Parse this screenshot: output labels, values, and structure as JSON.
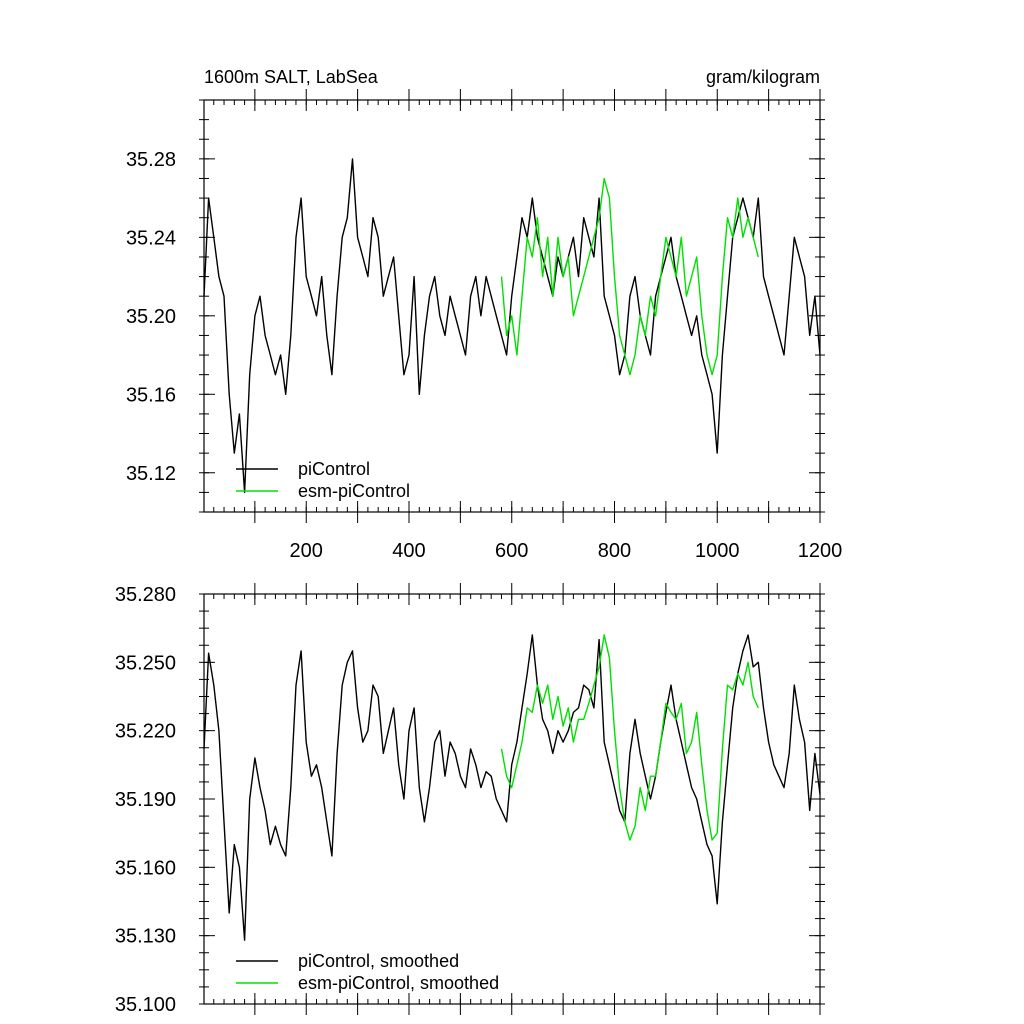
{
  "chart_data": [
    {
      "type": "line",
      "title_left": "1600m SALT, LabSea",
      "title_right": "gram/kilogram",
      "xlim": [
        1,
        1200
      ],
      "ylim": [
        35.1,
        35.31
      ],
      "xticks": [
        200,
        400,
        600,
        800,
        1000,
        1200
      ],
      "xtick_labels": [
        "200",
        "400",
        "600",
        "800",
        "1000",
        "1200"
      ],
      "yticks": [
        35.12,
        35.16,
        35.2,
        35.24,
        35.28
      ],
      "ytick_labels": [
        "35.12",
        "35.16",
        "35.20",
        "35.24",
        "35.28"
      ],
      "grid": false,
      "legend_position": "bottom-left",
      "series": [
        {
          "name": "piControl",
          "color": "#000000",
          "x": [
            1,
            10,
            20,
            30,
            40,
            50,
            60,
            70,
            80,
            90,
            100,
            110,
            120,
            130,
            140,
            150,
            160,
            170,
            180,
            190,
            200,
            210,
            220,
            230,
            240,
            250,
            260,
            270,
            280,
            290,
            300,
            310,
            320,
            330,
            340,
            350,
            360,
            370,
            380,
            390,
            400,
            410,
            420,
            430,
            440,
            450,
            460,
            470,
            480,
            490,
            500,
            510,
            520,
            530,
            540,
            550,
            560,
            570,
            580,
            590,
            600,
            610,
            620,
            630,
            640,
            650,
            660,
            670,
            680,
            690,
            700,
            710,
            720,
            730,
            740,
            750,
            760,
            770,
            780,
            790,
            800,
            810,
            820,
            830,
            840,
            850,
            860,
            870,
            880,
            890,
            900,
            910,
            920,
            930,
            940,
            950,
            960,
            970,
            980,
            990,
            1000,
            1010,
            1020,
            1030,
            1040,
            1050,
            1060,
            1070,
            1080,
            1090,
            1100,
            1110,
            1120,
            1130,
            1140,
            1150,
            1160,
            1170,
            1180,
            1190,
            1200
          ],
          "values": [
            35.21,
            35.26,
            35.24,
            35.22,
            35.21,
            35.16,
            35.13,
            35.15,
            35.11,
            35.17,
            35.2,
            35.21,
            35.19,
            35.18,
            35.17,
            35.18,
            35.16,
            35.19,
            35.24,
            35.26,
            35.22,
            35.21,
            35.2,
            35.22,
            35.19,
            35.17,
            35.21,
            35.24,
            35.25,
            35.28,
            35.24,
            35.23,
            35.22,
            35.25,
            35.24,
            35.21,
            35.22,
            35.23,
            35.2,
            35.17,
            35.18,
            35.22,
            35.16,
            35.19,
            35.21,
            35.22,
            35.2,
            35.19,
            35.21,
            35.2,
            35.19,
            35.18,
            35.21,
            35.22,
            35.2,
            35.22,
            35.21,
            35.2,
            35.19,
            35.18,
            35.21,
            35.23,
            35.25,
            35.24,
            35.26,
            35.24,
            35.23,
            35.22,
            35.21,
            35.23,
            35.22,
            35.23,
            35.24,
            35.22,
            35.25,
            35.24,
            35.23,
            35.26,
            35.21,
            35.2,
            35.19,
            35.17,
            35.18,
            35.21,
            35.22,
            35.2,
            35.19,
            35.18,
            35.21,
            35.22,
            35.23,
            35.24,
            35.22,
            35.21,
            35.2,
            35.19,
            35.2,
            35.18,
            35.17,
            35.16,
            35.13,
            35.18,
            35.21,
            35.24,
            35.25,
            35.26,
            35.25,
            35.24,
            35.26,
            35.22,
            35.21,
            35.2,
            35.19,
            35.18,
            35.21,
            35.24,
            35.23,
            35.22,
            35.19,
            35.21,
            35.18
          ]
        },
        {
          "name": "esm-piControl",
          "color": "#00e000",
          "x": [
            580,
            590,
            600,
            610,
            620,
            630,
            640,
            650,
            660,
            670,
            680,
            690,
            700,
            710,
            720,
            730,
            740,
            750,
            760,
            770,
            780,
            790,
            800,
            810,
            820,
            830,
            840,
            850,
            860,
            870,
            880,
            890,
            900,
            910,
            920,
            930,
            940,
            950,
            960,
            970,
            980,
            990,
            1000,
            1010,
            1020,
            1030,
            1040,
            1050,
            1060,
            1070,
            1080
          ],
          "values": [
            35.22,
            35.19,
            35.2,
            35.18,
            35.21,
            35.24,
            35.23,
            35.25,
            35.22,
            35.24,
            35.21,
            35.24,
            35.22,
            35.23,
            35.2,
            35.21,
            35.22,
            35.23,
            35.24,
            35.25,
            35.27,
            35.26,
            35.22,
            35.19,
            35.18,
            35.17,
            35.18,
            35.2,
            35.19,
            35.21,
            35.2,
            35.22,
            35.24,
            35.23,
            35.22,
            35.24,
            35.21,
            35.22,
            35.23,
            35.2,
            35.18,
            35.17,
            35.18,
            35.22,
            35.25,
            35.24,
            35.26,
            35.24,
            35.25,
            35.24,
            35.23
          ]
        }
      ],
      "legend": [
        {
          "label": "piControl",
          "color": "#000000"
        },
        {
          "label": "esm-piControl",
          "color": "#00e000"
        }
      ]
    },
    {
      "type": "line",
      "xlim": [
        1,
        1200
      ],
      "ylim": [
        35.1,
        35.28
      ],
      "yticks": [
        35.1,
        35.13,
        35.16,
        35.19,
        35.22,
        35.25,
        35.28
      ],
      "ytick_labels": [
        "35.100",
        "35.130",
        "35.160",
        "35.190",
        "35.220",
        "35.250",
        "35.280"
      ],
      "grid": false,
      "legend_position": "bottom-left",
      "series": [
        {
          "name": "piControl, smoothed",
          "color": "#000000",
          "x": [
            1,
            10,
            20,
            30,
            40,
            50,
            60,
            70,
            80,
            90,
            100,
            110,
            120,
            130,
            140,
            150,
            160,
            170,
            180,
            190,
            200,
            210,
            220,
            230,
            240,
            250,
            260,
            270,
            280,
            290,
            300,
            310,
            320,
            330,
            340,
            350,
            360,
            370,
            380,
            390,
            400,
            410,
            420,
            430,
            440,
            450,
            460,
            470,
            480,
            490,
            500,
            510,
            520,
            530,
            540,
            550,
            560,
            570,
            580,
            590,
            600,
            610,
            620,
            630,
            640,
            650,
            660,
            670,
            680,
            690,
            700,
            710,
            720,
            730,
            740,
            750,
            760,
            770,
            780,
            790,
            800,
            810,
            820,
            830,
            840,
            850,
            860,
            870,
            880,
            890,
            900,
            910,
            920,
            930,
            940,
            950,
            960,
            970,
            980,
            990,
            1000,
            1010,
            1020,
            1030,
            1040,
            1050,
            1060,
            1070,
            1080,
            1090,
            1100,
            1110,
            1120,
            1130,
            1140,
            1150,
            1160,
            1170,
            1180,
            1190,
            1200
          ],
          "values": [
            35.212,
            35.254,
            35.24,
            35.22,
            35.18,
            35.14,
            35.17,
            35.16,
            35.128,
            35.19,
            35.208,
            35.195,
            35.185,
            35.17,
            35.178,
            35.17,
            35.165,
            35.195,
            35.24,
            35.255,
            35.215,
            35.2,
            35.205,
            35.195,
            35.18,
            35.165,
            35.21,
            35.24,
            35.25,
            35.255,
            35.23,
            35.215,
            35.22,
            35.24,
            35.235,
            35.21,
            35.22,
            35.23,
            35.205,
            35.19,
            35.22,
            35.23,
            35.195,
            35.18,
            35.195,
            35.215,
            35.22,
            35.2,
            35.215,
            35.21,
            35.2,
            35.195,
            35.212,
            35.205,
            35.195,
            35.202,
            35.2,
            35.19,
            35.185,
            35.18,
            35.205,
            35.215,
            35.23,
            35.245,
            35.262,
            35.24,
            35.225,
            35.22,
            35.21,
            35.22,
            35.215,
            35.22,
            35.228,
            35.23,
            35.24,
            35.238,
            35.23,
            35.26,
            35.215,
            35.205,
            35.195,
            35.185,
            35.18,
            35.21,
            35.225,
            35.21,
            35.2,
            35.19,
            35.2,
            35.215,
            35.228,
            35.24,
            35.225,
            35.215,
            35.205,
            35.195,
            35.19,
            35.18,
            35.17,
            35.165,
            35.144,
            35.18,
            35.205,
            35.23,
            35.245,
            35.255,
            35.262,
            35.248,
            35.25,
            35.23,
            35.215,
            35.205,
            35.2,
            35.195,
            35.21,
            35.24,
            35.225,
            35.215,
            35.185,
            35.21,
            35.192
          ]
        },
        {
          "name": "esm-piControl, smoothed",
          "color": "#00e000",
          "x": [
            580,
            590,
            600,
            610,
            620,
            630,
            640,
            650,
            660,
            670,
            680,
            690,
            700,
            710,
            720,
            730,
            740,
            750,
            760,
            770,
            780,
            790,
            800,
            810,
            820,
            830,
            840,
            850,
            860,
            870,
            880,
            890,
            900,
            910,
            920,
            930,
            940,
            950,
            960,
            970,
            980,
            990,
            1000,
            1010,
            1020,
            1030,
            1040,
            1050,
            1060,
            1070,
            1080
          ],
          "values": [
            35.212,
            35.2,
            35.195,
            35.205,
            35.215,
            35.23,
            35.228,
            35.24,
            35.232,
            35.24,
            35.225,
            35.235,
            35.222,
            35.23,
            35.215,
            35.225,
            35.225,
            35.232,
            35.24,
            35.248,
            35.262,
            35.252,
            35.22,
            35.195,
            35.18,
            35.172,
            35.178,
            35.195,
            35.185,
            35.2,
            35.2,
            35.215,
            35.232,
            35.228,
            35.225,
            35.232,
            35.21,
            35.215,
            35.228,
            35.205,
            35.185,
            35.172,
            35.175,
            35.212,
            35.24,
            35.238,
            35.245,
            35.24,
            35.25,
            35.235,
            35.23
          ]
        }
      ],
      "legend": [
        {
          "label": "piControl, smoothed",
          "color": "#000000"
        },
        {
          "label": "esm-piControl, smoothed",
          "color": "#00e000"
        }
      ]
    }
  ]
}
